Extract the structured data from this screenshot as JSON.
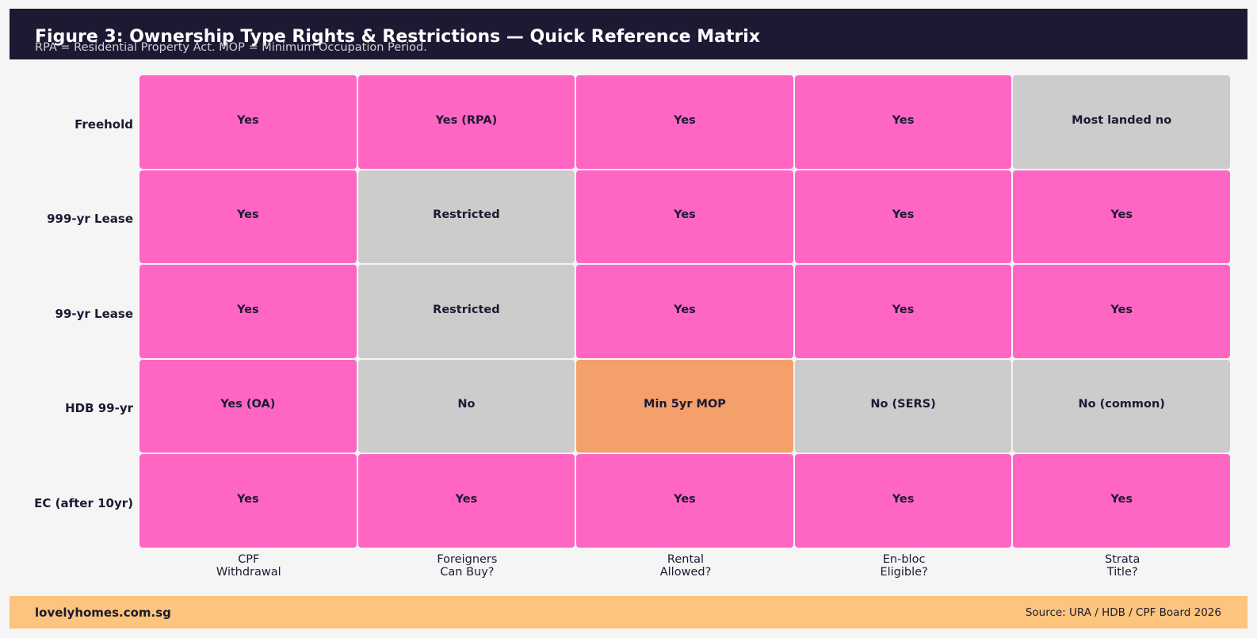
{
  "header": {
    "title": "Figure 3: Ownership Type Rights & Restrictions — Quick Reference Matrix",
    "subtitle": "RPA = Residential Property Act. MOP = Minimum Occupation Period."
  },
  "footer": {
    "brand": "lovelyhomes.com.sg",
    "source": "Source: URA / HDB / CPF Board 2026"
  },
  "colors": {
    "header_bg": "#1c1a33",
    "footer_bg": "#fcc47c",
    "yes": "#ff66c4",
    "no": "#cccccc",
    "conditional": "#f4a06a",
    "text": "#1c1a33"
  },
  "chart_data": {
    "type": "table",
    "rows": [
      "Freehold",
      "999-yr Lease",
      "99-yr Lease",
      "HDB 99-yr",
      "EC (after 10yr)"
    ],
    "columns": [
      [
        "CPF",
        "Withdrawal"
      ],
      [
        "Foreigners",
        "Can Buy?"
      ],
      [
        "Rental",
        "Allowed?"
      ],
      [
        "En-bloc",
        "Eligible?"
      ],
      [
        "Strata",
        "Title?"
      ]
    ],
    "cells": [
      [
        {
          "text": "Yes",
          "status": "yes"
        },
        {
          "text": "Yes (RPA)",
          "status": "yes"
        },
        {
          "text": "Yes",
          "status": "yes"
        },
        {
          "text": "Yes",
          "status": "yes"
        },
        {
          "text": "Most landed no",
          "status": "no"
        }
      ],
      [
        {
          "text": "Yes",
          "status": "yes"
        },
        {
          "text": "Restricted",
          "status": "no"
        },
        {
          "text": "Yes",
          "status": "yes"
        },
        {
          "text": "Yes",
          "status": "yes"
        },
        {
          "text": "Yes",
          "status": "yes"
        }
      ],
      [
        {
          "text": "Yes",
          "status": "yes"
        },
        {
          "text": "Restricted",
          "status": "no"
        },
        {
          "text": "Yes",
          "status": "yes"
        },
        {
          "text": "Yes",
          "status": "yes"
        },
        {
          "text": "Yes",
          "status": "yes"
        }
      ],
      [
        {
          "text": "Yes (OA)",
          "status": "yes"
        },
        {
          "text": "No",
          "status": "no"
        },
        {
          "text": "Min 5yr MOP",
          "status": "conditional"
        },
        {
          "text": "No (SERS)",
          "status": "no"
        },
        {
          "text": "No (common)",
          "status": "no"
        }
      ],
      [
        {
          "text": "Yes",
          "status": "yes"
        },
        {
          "text": "Yes",
          "status": "yes"
        },
        {
          "text": "Yes",
          "status": "yes"
        },
        {
          "text": "Yes",
          "status": "yes"
        },
        {
          "text": "Yes",
          "status": "yes"
        }
      ]
    ]
  }
}
